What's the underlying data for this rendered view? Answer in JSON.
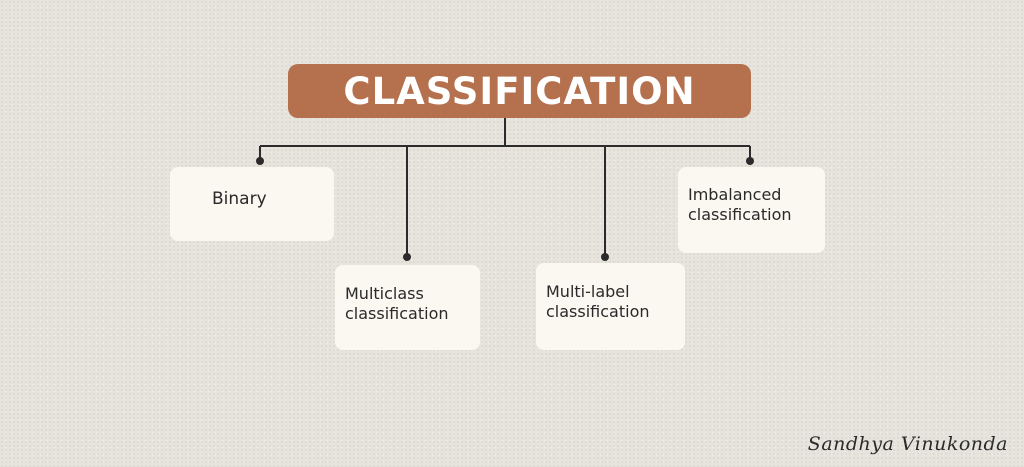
{
  "diagram": {
    "root": {
      "label": "CLASSIFICATION"
    },
    "children": [
      {
        "label": "Binary"
      },
      {
        "label": "Multiclass classification"
      },
      {
        "label": "Multi-label classification"
      },
      {
        "label": "Imbalanced classification"
      }
    ]
  },
  "signature": "Sandhya Vinukonda",
  "colors": {
    "background": "#e7e4dd",
    "root_fill": "#b5704d",
    "root_text": "#ffffff",
    "node_fill": "#fbf7f1",
    "connector": "#2b2b2b"
  }
}
